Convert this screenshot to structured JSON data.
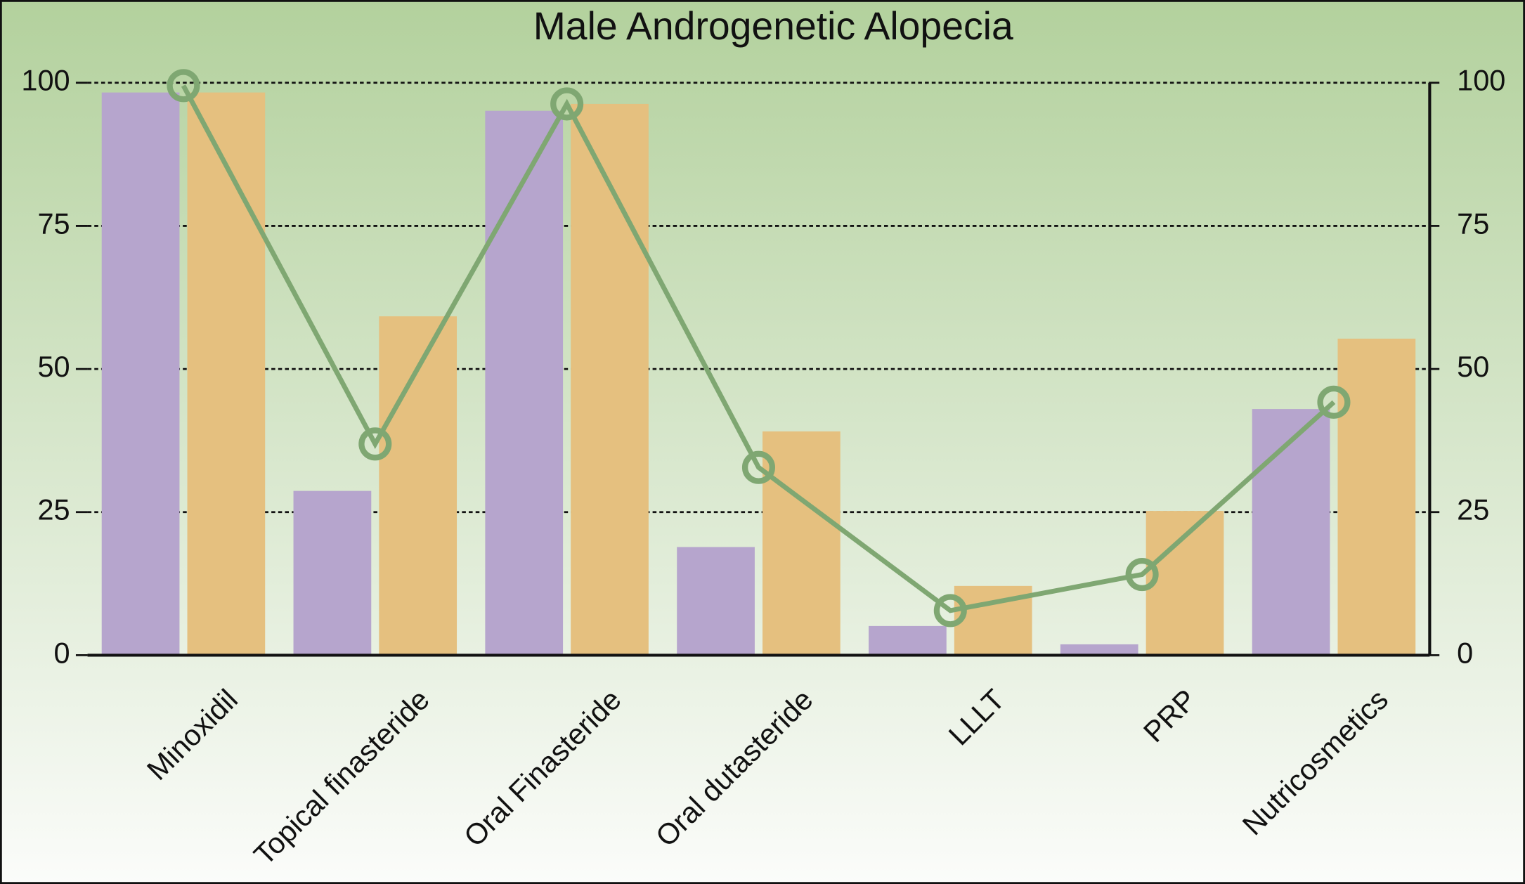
{
  "chart_data": {
    "type": "bar",
    "title": "Male Androgenetic Alopecia",
    "categories": [
      "Minoxidil",
      "Topical finasteride",
      "Oral Finasteride",
      "Oral dutasteride",
      "LLLT",
      "PRP",
      "Nutricosmetics"
    ],
    "series": [
      {
        "color": "#b6a5cd",
        "values": [
          98.3,
          28.7,
          95.1,
          18.9,
          5.1,
          1.9,
          43
        ]
      },
      {
        "color": "#e5c07f",
        "values": [
          98.3,
          59.2,
          96.3,
          39.1,
          12.1,
          25.2,
          55.3
        ]
      },
      {
        "type": "line",
        "axis": "y2",
        "color": "#7fa772",
        "values": [
          99.5,
          36.9,
          96.3,
          32.8,
          7.8,
          14.1,
          44.2
        ]
      }
    ],
    "ylim": [
      0,
      100
    ],
    "yticks": [
      0,
      25,
      50,
      75,
      100
    ],
    "y2lim": [
      0,
      100
    ],
    "y2ticks": [
      0,
      25,
      50,
      75,
      100
    ],
    "grid": true
  }
}
